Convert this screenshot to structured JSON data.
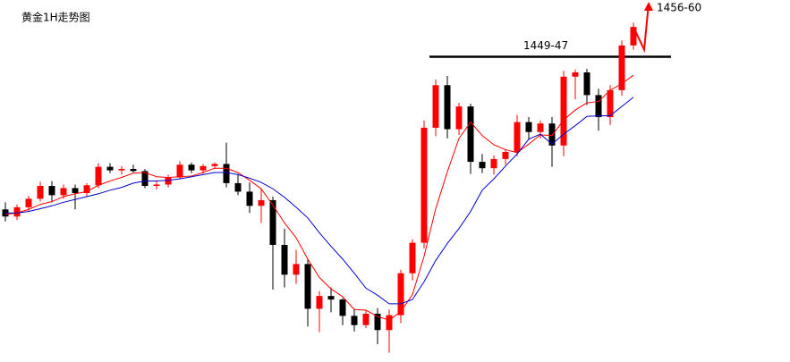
{
  "chart_data": {
    "type": "candlestick",
    "title": "黄金1H走势图",
    "ylim": [
      1406,
      1457
    ],
    "up_color": "#ff0000",
    "down_color": "#000000",
    "open": [
      1427.5,
      1426.5,
      1427.8,
      1429,
      1430.8,
      1429.5,
      1430.5,
      1429.8,
      1430.9,
      1433.5,
      1433,
      1433.2,
      1432.9,
      1430.8,
      1431,
      1432,
      1433.8,
      1433,
      1433.6,
      1433.9,
      1431.2,
      1430,
      1428,
      1428.8,
      1422.5,
      1418.3,
      1419.8,
      1413.5,
      1415.3,
      1414.8,
      1412.5,
      1411.2,
      1412.8,
      1410.5,
      1412.6,
      1418.5,
      1422.8,
      1439,
      1445,
      1438.8,
      1442,
      1434.2,
      1433.3,
      1434.6,
      1435.6,
      1439.8,
      1438.4,
      1439.6,
      1436.5,
      1446.2,
      1446.8,
      1443.6,
      1440.5,
      1444.3,
      1450.6
    ],
    "high": [
      1428.5,
      1428.2,
      1429.4,
      1431.4,
      1431.5,
      1431,
      1431,
      1431.2,
      1434,
      1434,
      1433.6,
      1433.8,
      1433.2,
      1431.6,
      1432.4,
      1434.3,
      1434.1,
      1433.9,
      1434.1,
      1436.9,
      1432.5,
      1431.3,
      1430.5,
      1429.3,
      1424.8,
      1421.8,
      1420.4,
      1416,
      1416.5,
      1415,
      1413.5,
      1413.3,
      1413.6,
      1413.4,
      1419,
      1423.3,
      1440,
      1445.8,
      1446.3,
      1442.5,
      1442.4,
      1435.3,
      1435.1,
      1436,
      1440.8,
      1440.5,
      1440,
      1440.5,
      1447,
      1447.2,
      1447.3,
      1444.5,
      1445,
      1451.3,
      1453.8
    ],
    "low": [
      1425.8,
      1426,
      1427.2,
      1428.6,
      1428.5,
      1429,
      1427.5,
      1429.3,
      1430.5,
      1432.6,
      1432.4,
      1432.7,
      1430.5,
      1430.3,
      1430.6,
      1431.8,
      1432.6,
      1432.5,
      1433.2,
      1430.6,
      1429.5,
      1427,
      1425.6,
      1416.2,
      1416.5,
      1417,
      1411,
      1410.2,
      1413,
      1411.2,
      1410.3,
      1410.8,
      1408.5,
      1407.3,
      1411.5,
      1417.5,
      1422,
      1437.8,
      1437.5,
      1438,
      1432.5,
      1432.6,
      1432.4,
      1433.8,
      1435,
      1437.3,
      1437.5,
      1433.5,
      1435,
      1443,
      1442.2,
      1438.6,
      1439.4,
      1443.5,
      1450
    ],
    "close": [
      1426.5,
      1427.8,
      1429,
      1430.8,
      1429.5,
      1430.5,
      1429.8,
      1430.9,
      1433.5,
      1433,
      1433.2,
      1432.9,
      1430.8,
      1431,
      1432,
      1433.8,
      1433,
      1433.6,
      1433.9,
      1431.2,
      1430,
      1428,
      1428.8,
      1422.5,
      1418.3,
      1419.8,
      1413.5,
      1415.3,
      1414.8,
      1412.5,
      1411.2,
      1412.8,
      1410.5,
      1412.6,
      1418.5,
      1422.8,
      1439,
      1445,
      1438.8,
      1442,
      1434.2,
      1433.3,
      1434.6,
      1435.6,
      1439.8,
      1438.4,
      1439.6,
      1436.5,
      1446.2,
      1446.8,
      1443.6,
      1440.5,
      1444.3,
      1450.6,
      1453.2
    ],
    "lines": [
      {
        "color": "#ff0000",
        "values": [
          1426.8,
          1427,
          1427.5,
          1428.2,
          1428.6,
          1429.3,
          1429.7,
          1430,
          1430.9,
          1431.5,
          1432,
          1432.6,
          1432.7,
          1432.1,
          1432,
          1432.1,
          1432.2,
          1432.7,
          1433.3,
          1433.3,
          1432.7,
          1431.6,
          1430.4,
          1428.1,
          1425.6,
          1423.5,
          1420.5,
          1417.9,
          1416.3,
          1415.2,
          1413.4,
          1413.3,
          1412.4,
          1411.9,
          1413.1,
          1415.5,
          1420.9,
          1427.6,
          1432.8,
          1437.5,
          1439.8,
          1437.9,
          1436.6,
          1435.9,
          1435.5,
          1436.7,
          1438,
          1437.9,
          1440.1,
          1441.5,
          1442.5,
          1442.7,
          1444.3,
          1445.2,
          1446.4
        ]
      },
      {
        "color": "#0000cc",
        "values": [
          1427,
          1427,
          1427.2,
          1427.6,
          1428,
          1428.5,
          1428.9,
          1429.3,
          1429.7,
          1430.2,
          1430.6,
          1431.2,
          1431.5,
          1431.5,
          1431.6,
          1431.8,
          1432.1,
          1432.4,
          1432.7,
          1432.7,
          1432.4,
          1431.9,
          1431.3,
          1430.4,
          1429.2,
          1427.8,
          1426.3,
          1424.2,
          1422.3,
          1420.5,
          1418.5,
          1416.4,
          1415.4,
          1414.2,
          1414.2,
          1414.8,
          1417.3,
          1420.3,
          1422.7,
          1424.8,
          1427.2,
          1430.2,
          1431.8,
          1433.6,
          1435.3,
          1437.4,
          1438.1,
          1436.7,
          1438.1,
          1439.3,
          1440.6,
          1440.7,
          1440.7,
          1442,
          1443.3
        ]
      }
    ],
    "resistance": {
      "value": 1449,
      "label": "1449-47"
    },
    "projection": {
      "values": [
        1453.2,
        1450,
        1456.5
      ],
      "color": "#ff0000",
      "label": "1456-60"
    }
  }
}
